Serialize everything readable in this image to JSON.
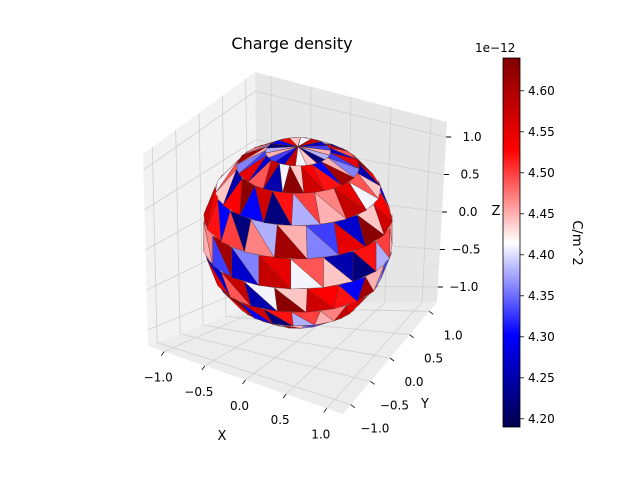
{
  "chart_data": {
    "type": "scatter",
    "subtype": "3d-triangulated-sphere-surface",
    "title": "Charge density",
    "xlabel": "X",
    "ylabel": "Y",
    "zlabel": "Z",
    "x_ticks": [
      "−1.0",
      "−0.5",
      "0.0",
      "0.5",
      "1.0"
    ],
    "y_ticks": [
      "−1.0",
      "−0.5",
      "0.0",
      "0.5",
      "1.0"
    ],
    "z_ticks": [
      "−1.0",
      "−0.5",
      "0.0",
      "0.5",
      "1.0"
    ],
    "xlim": [
      -1.2,
      1.2
    ],
    "ylim": [
      -1.2,
      1.2
    ],
    "zlim": [
      -1.2,
      1.2
    ],
    "grid": true,
    "colorbar": {
      "label": "C/m^2",
      "offset_text": "1e−12",
      "colormap": "seismic",
      "range": [
        4.19,
        4.64
      ],
      "ticks": [
        "4.20",
        "4.25",
        "4.30",
        "4.35",
        "4.40",
        "4.45",
        "4.50",
        "4.55",
        "4.60"
      ],
      "tick_values": [
        4.2,
        4.25,
        4.3,
        4.35,
        4.4,
        4.45,
        4.5,
        4.55,
        4.6
      ]
    },
    "face_values_sample": [
      4.52,
      4.38,
      4.61,
      4.27,
      4.49,
      4.44,
      4.57,
      4.22,
      4.47,
      4.33,
      4.55,
      4.41,
      4.63,
      4.3,
      4.5,
      4.45,
      4.36,
      4.58,
      4.25,
      4.53
    ]
  }
}
